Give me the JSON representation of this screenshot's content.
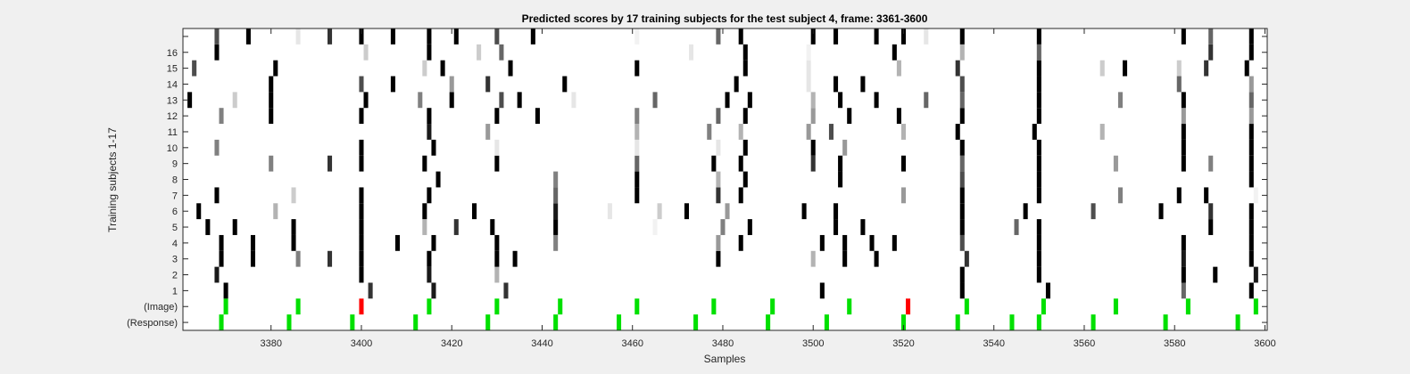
{
  "chart_data": {
    "type": "heatmap",
    "title": "Predicted scores by 17 training subjects for the test subject 4, frame: 3361-3600",
    "xlabel": "Samples",
    "ylabel": "Training subjects 1-17",
    "xlim": [
      3361,
      3600
    ],
    "x_ticks": [
      "3380",
      "3400",
      "3420",
      "3440",
      "3460",
      "3480",
      "3500",
      "3520",
      "3540",
      "3560",
      "3580",
      "3600"
    ],
    "x_tick_values": [
      3380,
      3400,
      3420,
      3440,
      3460,
      3480,
      3500,
      3520,
      3540,
      3560,
      3580,
      3600
    ],
    "row_labels": [
      "(Response)",
      "(Image)",
      "1",
      "2",
      "3",
      "4",
      "5",
      "6",
      "7",
      "8",
      "9",
      "10",
      "11",
      "12",
      "13",
      "14",
      "15",
      "16",
      ""
    ],
    "colors": {
      "score": "#000000",
      "image": "#00e000",
      "response": "#00e000",
      "mismatch": "#ff0000",
      "background": "#ffffff"
    },
    "response_marks": [
      3369,
      3384,
      3398,
      3412,
      3428,
      3443,
      3457,
      3474,
      3490,
      3503,
      3520,
      3532,
      3544,
      3550,
      3562,
      3578,
      3594
    ],
    "image_marks": [
      {
        "x": 3370,
        "color": "#00e000"
      },
      {
        "x": 3386,
        "color": "#00e000"
      },
      {
        "x": 3400,
        "color": "#ff0000"
      },
      {
        "x": 3415,
        "color": "#00e000"
      },
      {
        "x": 3430,
        "color": "#00e000"
      },
      {
        "x": 3444,
        "color": "#00e000"
      },
      {
        "x": 3461,
        "color": "#00e000"
      },
      {
        "x": 3478,
        "color": "#00e000"
      },
      {
        "x": 3491,
        "color": "#00e000"
      },
      {
        "x": 3508,
        "color": "#00e000"
      },
      {
        "x": 3521,
        "color": "#ff0000"
      },
      {
        "x": 3534,
        "color": "#00e000"
      },
      {
        "x": 3551,
        "color": "#00e000"
      },
      {
        "x": 3567,
        "color": "#00e000"
      },
      {
        "x": 3583,
        "color": "#00e000"
      },
      {
        "x": 3598,
        "color": "#00e000"
      }
    ],
    "subject_cells": [
      {
        "subject": 1,
        "cells": [
          [
            3370,
            1.0
          ],
          [
            3402,
            0.8
          ],
          [
            3416,
            0.9
          ],
          [
            3432,
            0.8
          ],
          [
            3502,
            1.0
          ],
          [
            3533,
            1.0
          ],
          [
            3552,
            1.0
          ],
          [
            3582,
            0.6
          ],
          [
            3597,
            1.0
          ]
        ]
      },
      {
        "subject": 2,
        "cells": [
          [
            3368,
            0.9
          ],
          [
            3400,
            1.0
          ],
          [
            3415,
            0.9
          ],
          [
            3430,
            0.3
          ],
          [
            3533,
            1.0
          ],
          [
            3550,
            1.0
          ],
          [
            3582,
            1.0
          ],
          [
            3589,
            1.0
          ],
          [
            3598,
            0.9
          ]
        ]
      },
      {
        "subject": 3,
        "cells": [
          [
            3369,
            1.0
          ],
          [
            3376,
            1.0
          ],
          [
            3386,
            0.5
          ],
          [
            3393,
            0.8
          ],
          [
            3400,
            1.0
          ],
          [
            3415,
            1.0
          ],
          [
            3430,
            1.0
          ],
          [
            3434,
            1.0
          ],
          [
            3479,
            1.0
          ],
          [
            3500,
            0.3
          ],
          [
            3507,
            1.0
          ],
          [
            3514,
            1.0
          ],
          [
            3534,
            0.8
          ],
          [
            3550,
            1.0
          ],
          [
            3582,
            0.9
          ],
          [
            3597,
            1.0
          ]
        ]
      },
      {
        "subject": 4,
        "cells": [
          [
            3369,
            1.0
          ],
          [
            3376,
            1.0
          ],
          [
            3385,
            1.0
          ],
          [
            3400,
            1.0
          ],
          [
            3408,
            1.0
          ],
          [
            3416,
            1.0
          ],
          [
            3430,
            1.0
          ],
          [
            3443,
            0.5
          ],
          [
            3479,
            0.4
          ],
          [
            3484,
            1.0
          ],
          [
            3502,
            1.0
          ],
          [
            3507,
            1.0
          ],
          [
            3513,
            1.0
          ],
          [
            3518,
            1.0
          ],
          [
            3533,
            0.7
          ],
          [
            3550,
            1.0
          ],
          [
            3582,
            1.0
          ],
          [
            3597,
            1.0
          ]
        ]
      },
      {
        "subject": 5,
        "cells": [
          [
            3366,
            1.0
          ],
          [
            3372,
            1.0
          ],
          [
            3385,
            1.0
          ],
          [
            3400,
            1.0
          ],
          [
            3414,
            0.3
          ],
          [
            3421,
            0.8
          ],
          [
            3429,
            1.0
          ],
          [
            3443,
            1.0
          ],
          [
            3465,
            0.05
          ],
          [
            3480,
            0.5
          ],
          [
            3486,
            1.0
          ],
          [
            3505,
            1.0
          ],
          [
            3511,
            1.0
          ],
          [
            3533,
            1.0
          ],
          [
            3545,
            0.6
          ],
          [
            3550,
            1.0
          ],
          [
            3588,
            1.0
          ],
          [
            3597,
            1.0
          ]
        ]
      },
      {
        "subject": 6,
        "cells": [
          [
            3364,
            1.0
          ],
          [
            3381,
            0.3
          ],
          [
            3400,
            1.0
          ],
          [
            3414,
            1.0
          ],
          [
            3425,
            1.0
          ],
          [
            3443,
            0.9
          ],
          [
            3455,
            0.1
          ],
          [
            3466,
            0.2
          ],
          [
            3472,
            1.0
          ],
          [
            3481,
            0.4
          ],
          [
            3498,
            1.0
          ],
          [
            3505,
            1.0
          ],
          [
            3533,
            1.0
          ],
          [
            3547,
            1.0
          ],
          [
            3562,
            0.7
          ],
          [
            3577,
            1.0
          ],
          [
            3588,
            0.8
          ],
          [
            3597,
            1.0
          ]
        ]
      },
      {
        "subject": 7,
        "cells": [
          [
            3368,
            1.0
          ],
          [
            3385,
            0.2
          ],
          [
            3400,
            1.0
          ],
          [
            3415,
            1.0
          ],
          [
            3443,
            0.6
          ],
          [
            3461,
            1.0
          ],
          [
            3479,
            0.8
          ],
          [
            3484,
            1.0
          ],
          [
            3520,
            0.4
          ],
          [
            3533,
            1.0
          ],
          [
            3550,
            1.0
          ],
          [
            3568,
            0.5
          ],
          [
            3581,
            1.0
          ],
          [
            3587,
            1.0
          ],
          [
            3598,
            0.05
          ]
        ]
      },
      {
        "subject": 8,
        "cells": [
          [
            3417,
            1.0
          ],
          [
            3443,
            0.5
          ],
          [
            3461,
            1.0
          ],
          [
            3479,
            0.3
          ],
          [
            3485,
            1.0
          ],
          [
            3506,
            1.0
          ],
          [
            3533,
            0.7
          ],
          [
            3550,
            1.0
          ],
          [
            3597,
            1.0
          ]
        ]
      },
      {
        "subject": 9,
        "cells": [
          [
            3380,
            0.5
          ],
          [
            3393,
            0.8
          ],
          [
            3400,
            1.0
          ],
          [
            3414,
            1.0
          ],
          [
            3430,
            1.0
          ],
          [
            3461,
            0.6
          ],
          [
            3478,
            1.0
          ],
          [
            3484,
            1.0
          ],
          [
            3500,
            0.8
          ],
          [
            3506,
            1.0
          ],
          [
            3520,
            1.0
          ],
          [
            3533,
            0.6
          ],
          [
            3550,
            1.0
          ],
          [
            3567,
            0.4
          ],
          [
            3582,
            1.0
          ],
          [
            3588,
            0.5
          ],
          [
            3597,
            1.0
          ]
        ]
      },
      {
        "subject": 10,
        "cells": [
          [
            3368,
            0.5
          ],
          [
            3400,
            1.0
          ],
          [
            3416,
            1.0
          ],
          [
            3430,
            0.1
          ],
          [
            3461,
            0.1
          ],
          [
            3479,
            0.1
          ],
          [
            3485,
            1.0
          ],
          [
            3500,
            1.0
          ],
          [
            3507,
            0.4
          ],
          [
            3533,
            1.0
          ],
          [
            3550,
            1.0
          ],
          [
            3582,
            1.0
          ],
          [
            3597,
            1.0
          ]
        ]
      },
      {
        "subject": 11,
        "cells": [
          [
            3415,
            0.9
          ],
          [
            3428,
            0.4
          ],
          [
            3461,
            0.3
          ],
          [
            3477,
            0.5
          ],
          [
            3484,
            0.3
          ],
          [
            3499,
            0.4
          ],
          [
            3504,
            0.7
          ],
          [
            3520,
            0.3
          ],
          [
            3532,
            1.0
          ],
          [
            3549,
            1.0
          ],
          [
            3564,
            0.3
          ],
          [
            3582,
            1.0
          ],
          [
            3597,
            1.0
          ]
        ]
      },
      {
        "subject": 12,
        "cells": [
          [
            3369,
            0.5
          ],
          [
            3380,
            1.0
          ],
          [
            3400,
            1.0
          ],
          [
            3415,
            1.0
          ],
          [
            3430,
            1.0
          ],
          [
            3439,
            1.0
          ],
          [
            3461,
            0.5
          ],
          [
            3479,
            0.6
          ],
          [
            3485,
            1.0
          ],
          [
            3500,
            0.4
          ],
          [
            3508,
            1.0
          ],
          [
            3519,
            1.0
          ],
          [
            3533,
            1.0
          ],
          [
            3550,
            1.0
          ],
          [
            3582,
            0.4
          ],
          [
            3597,
            0.4
          ]
        ]
      },
      {
        "subject": 13,
        "cells": [
          [
            3362,
            1.0
          ],
          [
            3372,
            0.2
          ],
          [
            3380,
            1.0
          ],
          [
            3401,
            1.0
          ],
          [
            3413,
            0.5
          ],
          [
            3420,
            1.0
          ],
          [
            3431,
            0.7
          ],
          [
            3435,
            1.0
          ],
          [
            3447,
            0.1
          ],
          [
            3465,
            0.6
          ],
          [
            3481,
            1.0
          ],
          [
            3486,
            1.0
          ],
          [
            3500,
            0.3
          ],
          [
            3506,
            1.0
          ],
          [
            3514,
            1.0
          ],
          [
            3525,
            0.6
          ],
          [
            3533,
            0.6
          ],
          [
            3550,
            1.0
          ],
          [
            3568,
            0.5
          ],
          [
            3582,
            1.0
          ],
          [
            3597,
            0.6
          ]
        ]
      },
      {
        "subject": 14,
        "cells": [
          [
            3380,
            1.0
          ],
          [
            3400,
            0.7
          ],
          [
            3407,
            1.0
          ],
          [
            3420,
            0.4
          ],
          [
            3428,
            0.8
          ],
          [
            3445,
            1.0
          ],
          [
            3483,
            1.0
          ],
          [
            3499,
            0.1
          ],
          [
            3505,
            1.0
          ],
          [
            3511,
            1.0
          ],
          [
            3533,
            0.7
          ],
          [
            3550,
            1.0
          ],
          [
            3581,
            0.6
          ],
          [
            3597,
            0.4
          ]
        ]
      },
      {
        "subject": 15,
        "cells": [
          [
            3363,
            0.7
          ],
          [
            3381,
            1.0
          ],
          [
            3414,
            0.2
          ],
          [
            3418,
            1.0
          ],
          [
            3433,
            1.0
          ],
          [
            3461,
            1.0
          ],
          [
            3485,
            1.0
          ],
          [
            3499,
            0.1
          ],
          [
            3519,
            0.3
          ],
          [
            3532,
            0.8
          ],
          [
            3550,
            1.0
          ],
          [
            3564,
            0.2
          ],
          [
            3569,
            1.0
          ],
          [
            3581,
            0.2
          ],
          [
            3587,
            0.8
          ],
          [
            3596,
            1.0
          ]
        ]
      },
      {
        "subject": 16,
        "cells": [
          [
            3368,
            1.0
          ],
          [
            3401,
            0.2
          ],
          [
            3415,
            1.0
          ],
          [
            3426,
            0.2
          ],
          [
            3431,
            0.6
          ],
          [
            3473,
            0.1
          ],
          [
            3485,
            1.0
          ],
          [
            3499,
            0.05
          ],
          [
            3518,
            1.0
          ],
          [
            3533,
            0.3
          ],
          [
            3550,
            0.6
          ],
          [
            3588,
            0.8
          ],
          [
            3597,
            1.0
          ]
        ]
      },
      {
        "subject": 17,
        "cells": [
          [
            3368,
            0.7
          ],
          [
            3375,
            1.0
          ],
          [
            3386,
            0.1
          ],
          [
            3393,
            0.8
          ],
          [
            3400,
            1.0
          ],
          [
            3407,
            1.0
          ],
          [
            3415,
            1.0
          ],
          [
            3421,
            1.0
          ],
          [
            3430,
            0.7
          ],
          [
            3438,
            1.0
          ],
          [
            3461,
            0.05
          ],
          [
            3479,
            0.6
          ],
          [
            3484,
            1.0
          ],
          [
            3500,
            1.0
          ],
          [
            3505,
            1.0
          ],
          [
            3514,
            1.0
          ],
          [
            3520,
            1.0
          ],
          [
            3525,
            0.1
          ],
          [
            3533,
            1.0
          ],
          [
            3550,
            1.0
          ],
          [
            3582,
            1.0
          ],
          [
            3588,
            0.6
          ],
          [
            3597,
            1.0
          ]
        ]
      }
    ]
  }
}
